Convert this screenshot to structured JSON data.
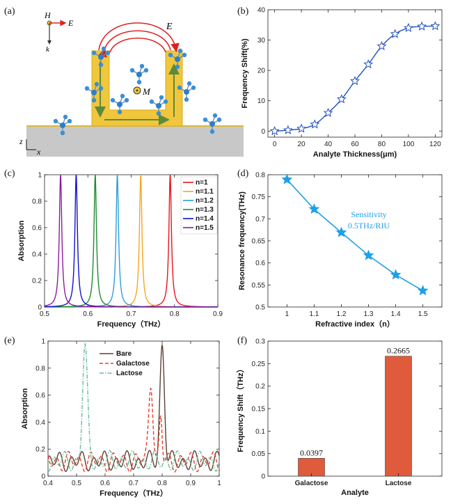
{
  "panels": {
    "a": {
      "label": "(a)",
      "symbols": {
        "H": "H",
        "E": "E",
        "k": "k",
        "E_arc": "E",
        "M": "M",
        "z": "z",
        "x": "x"
      },
      "colors": {
        "metal": "#f0c63c",
        "substrate": "#c8c8c8",
        "arrow": "#e02020",
        "current": "#5d8a3a",
        "molecule": "#3a8ed6"
      }
    },
    "b": {
      "label": "(b)"
    },
    "c": {
      "label": "(c)"
    },
    "d": {
      "label": "(d)",
      "annotation": [
        "Sensitivity",
        "0.5THz/RIU"
      ]
    },
    "e": {
      "label": "(e)"
    },
    "f": {
      "label": "(f)"
    }
  },
  "chart_data": [
    {
      "id": "b",
      "type": "line",
      "xlabel": "Analyte Thickness(μm)",
      "ylabel": "Frequency Shift(%)",
      "xlim": [
        -5,
        125
      ],
      "ylim": [
        -2,
        40
      ],
      "xticks": [
        0,
        20,
        40,
        60,
        80,
        100,
        120
      ],
      "yticks": [
        0,
        10,
        20,
        30,
        40
      ],
      "x": [
        0,
        10,
        20,
        30,
        40,
        50,
        60,
        70,
        80,
        90,
        100,
        110,
        120
      ],
      "y": [
        0,
        0.3,
        0.8,
        2.2,
        6,
        10.5,
        16.5,
        22,
        28,
        32,
        34,
        34.5,
        34.6
      ],
      "color": "#1f4fbf"
    },
    {
      "id": "c",
      "type": "line",
      "xlabel": "Frequency（THz）",
      "ylabel": "Absorption",
      "xlim": [
        0.5,
        0.9
      ],
      "ylim": [
        0,
        1
      ],
      "xticks": [
        0.5,
        0.6,
        0.7,
        0.8,
        0.9
      ],
      "yticks": [
        0,
        0.2,
        0.4,
        0.6,
        0.8,
        1
      ],
      "series": [
        {
          "name": "n=1",
          "peak": 0.79,
          "color": "#e8141c"
        },
        {
          "name": "n=1.1",
          "peak": 0.722,
          "color": "#f5a623"
        },
        {
          "name": "n=1.2",
          "peak": 0.668,
          "color": "#2a9fd8"
        },
        {
          "name": "n=1.3",
          "peak": 0.617,
          "color": "#1e8a2e"
        },
        {
          "name": "n=1.4",
          "peak": 0.573,
          "color": "#1010d0"
        },
        {
          "name": "n=1.5",
          "peak": 0.537,
          "color": "#8b1a9b"
        }
      ]
    },
    {
      "id": "d",
      "type": "line",
      "xlabel": "Refractive index（n）",
      "ylabel": "Resonance frequency(THz)",
      "xlim": [
        0.93,
        1.57
      ],
      "ylim": [
        0.5,
        0.8
      ],
      "xticks": [
        1,
        1.1,
        1.2,
        1.3,
        1.4,
        1.5
      ],
      "yticks": [
        0.5,
        0.55,
        0.6,
        0.65,
        0.7,
        0.75,
        0.8
      ],
      "x": [
        1,
        1.1,
        1.2,
        1.3,
        1.4,
        1.5
      ],
      "y": [
        0.789,
        0.722,
        0.669,
        0.617,
        0.573,
        0.537
      ],
      "color": "#1ea0e8"
    },
    {
      "id": "e",
      "type": "line",
      "xlabel": "Frequency（THz）",
      "ylabel": "Absorption",
      "xlim": [
        0.4,
        1
      ],
      "ylim": [
        0,
        1
      ],
      "xticks": [
        0.4,
        0.5,
        0.6,
        0.7,
        0.8,
        0.9,
        1
      ],
      "yticks": [
        0,
        0.2,
        0.4,
        0.6,
        0.8,
        1
      ],
      "series": [
        {
          "name": "Bare",
          "color": "#5a4036",
          "style": "solid",
          "peak": 0.8,
          "height": 0.97
        },
        {
          "name": "Galactose",
          "color": "#e0402a",
          "style": "dashed",
          "peak": 0.76,
          "height": 0.65
        },
        {
          "name": "Lactose",
          "color": "#6fb89a",
          "style": "dashdot",
          "peak": 0.53,
          "height": 0.98
        }
      ]
    },
    {
      "id": "f",
      "type": "bar",
      "xlabel": "Analyte",
      "ylabel": "Frequency Shift（THz）",
      "categories": [
        "Galactose",
        "Lactose"
      ],
      "values": [
        0.0397,
        0.2665
      ],
      "value_labels": [
        "0.0397",
        "0.2665"
      ],
      "ylim": [
        0,
        0.3
      ],
      "yticks": [
        0,
        0.05,
        0.1,
        0.15,
        0.2,
        0.25,
        0.3
      ],
      "color": "#e05a3c"
    }
  ]
}
